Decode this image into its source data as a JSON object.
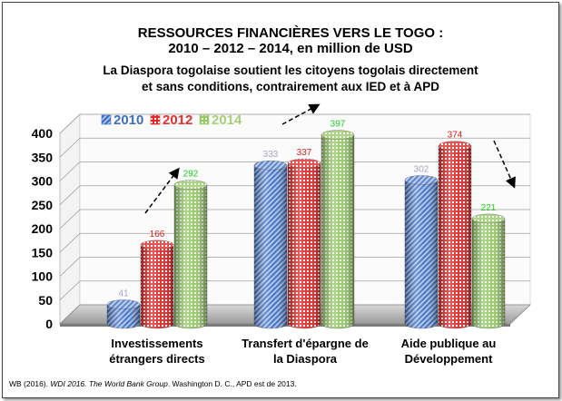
{
  "chart_data": {
    "type": "bar",
    "title": "RESSOURCES FINANCIÈRES VERS LE TOGO :",
    "subtitle": "2010 – 2012 – 2014, en million de USD",
    "annotation_lines": [
      "La Diaspora togolaise soutient les citoyens togolais directement",
      "et sans conditions, contrairement aux IED et à APD"
    ],
    "categories": [
      [
        "Investissements",
        "étrangers directs"
      ],
      [
        "Transfert d'épargne de",
        "la Diaspora"
      ],
      [
        "Aide publique au",
        "Développement"
      ]
    ],
    "series": [
      {
        "name": "2010",
        "values": [
          41,
          333,
          302
        ],
        "color": "#3f6fc4",
        "label_color": "#a6a6c8"
      },
      {
        "name": "2012",
        "values": [
          166,
          337,
          374
        ],
        "color": "#e03030",
        "label_color": "#d42020"
      },
      {
        "name": "2014",
        "values": [
          292,
          397,
          221
        ],
        "color": "#a6d07a",
        "label_color": "#22cc22"
      }
    ],
    "ylim": [
      0,
      400
    ],
    "yticks": [
      0,
      50,
      100,
      150,
      200,
      250,
      300,
      350,
      400
    ],
    "grid": true,
    "legend_position": "top-left",
    "source_parts": [
      "WB (2016). ",
      "WDI 2016. The World Bank Group",
      ". Washington D. C., APD est de 2013."
    ]
  }
}
